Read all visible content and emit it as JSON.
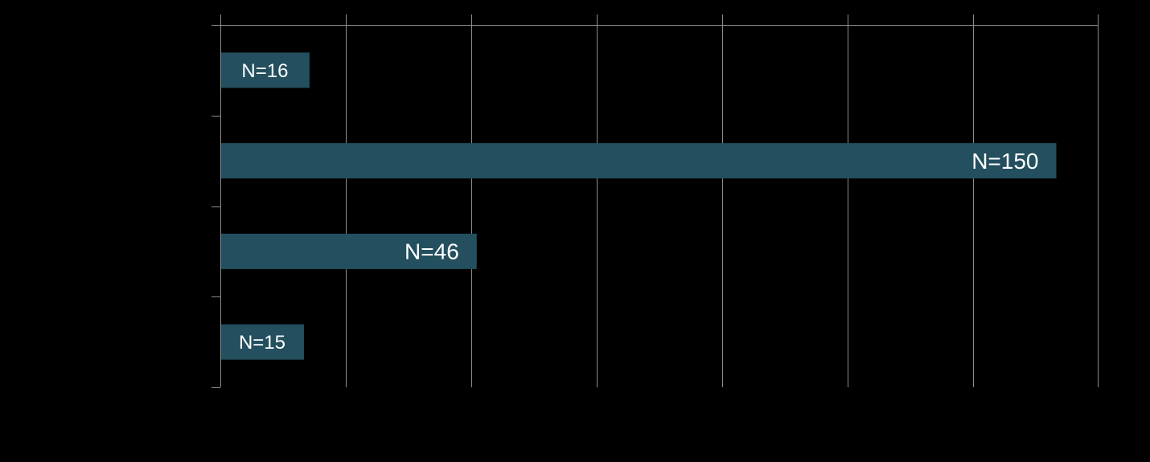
{
  "chart_data": {
    "type": "bar",
    "orientation": "horizontal",
    "categories": [
      "",
      "",
      "",
      ""
    ],
    "values": [
      16,
      150,
      46,
      15
    ],
    "data_labels": [
      "N=16",
      "N=150",
      "N=46",
      "N=15"
    ],
    "title": "",
    "xlabel": "",
    "ylabel": "",
    "xlim": [
      0,
      157.5
    ],
    "x_tick_step": 22.5,
    "grid": "vertical",
    "legend": "none",
    "colors": {
      "background": "#000000",
      "bar": "#234f5e",
      "grid": "#8c8c8c",
      "label": "#ffffff"
    }
  }
}
